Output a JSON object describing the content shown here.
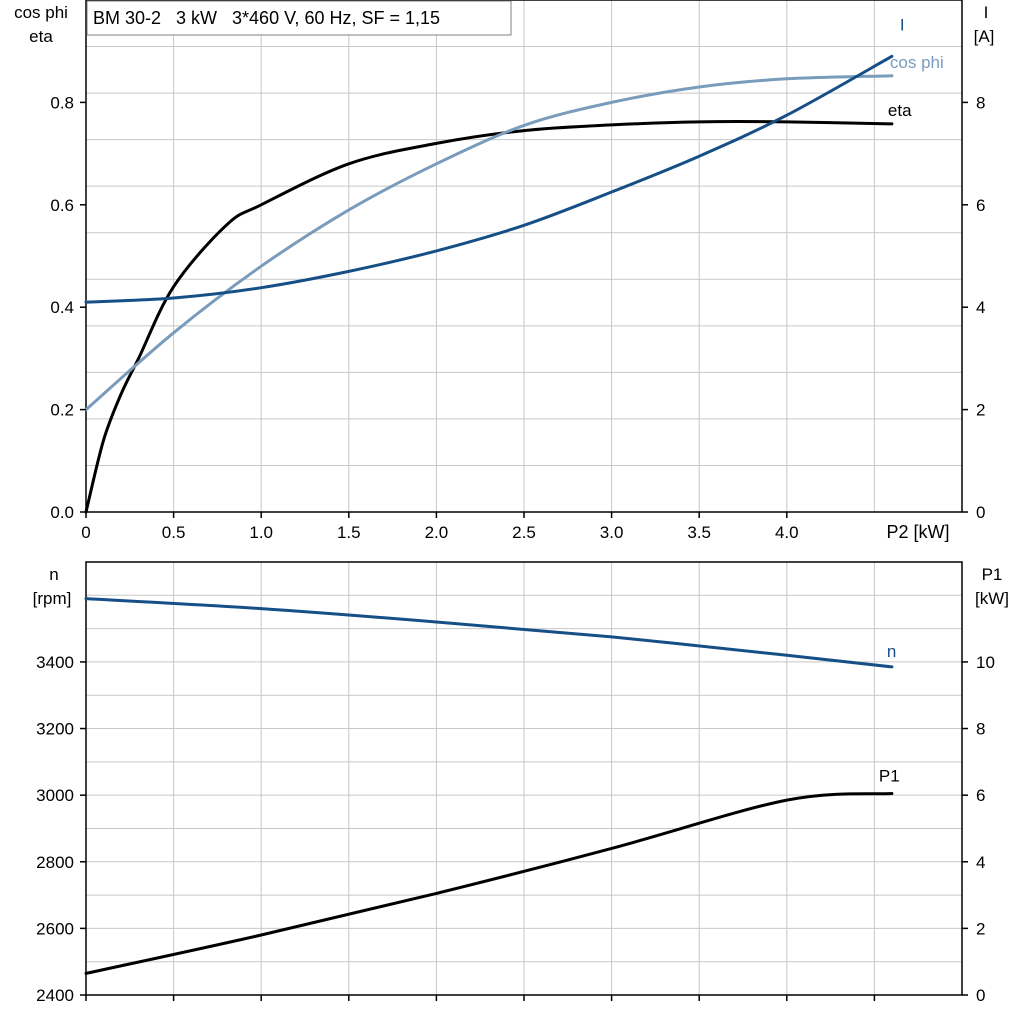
{
  "chart_data": [
    {
      "type": "line",
      "title": "BM 30-2   3 kW   3*460 V, 60 Hz, SF = 1,15",
      "xlabel": "P2 [kW]",
      "xlim": [
        0,
        5
      ],
      "xticks": [
        "0",
        "0.5",
        "1.0",
        "1.5",
        "2.0",
        "2.5",
        "3.0",
        "3.5",
        "4.0"
      ],
      "ylabel_left": [
        "cos phi",
        "eta"
      ],
      "ylim_left": [
        0,
        1.0
      ],
      "yticks_left": [
        "0.0",
        "0.2",
        "0.4",
        "0.6",
        "0.8"
      ],
      "ylabel_right": [
        "I",
        "[A]"
      ],
      "ylim_right": [
        0,
        10
      ],
      "yticks_right": [
        "0",
        "2",
        "4",
        "6",
        "8"
      ],
      "grid": true,
      "series": [
        {
          "name": "eta",
          "axis": "left",
          "color": "#000000",
          "x": [
            0,
            0.1,
            0.2,
            0.3,
            0.5,
            0.8,
            1.0,
            1.5,
            2.0,
            2.5,
            3.0,
            3.5,
            4.0,
            4.6
          ],
          "y": [
            0,
            0.14,
            0.23,
            0.3,
            0.44,
            0.56,
            0.6,
            0.68,
            0.72,
            0.745,
            0.756,
            0.762,
            0.762,
            0.758
          ]
        },
        {
          "name": "cos phi",
          "axis": "left",
          "color": "#7a9cbc",
          "x": [
            0,
            0.5,
            1.0,
            1.5,
            2.0,
            2.5,
            3.0,
            3.5,
            4.0,
            4.6
          ],
          "y": [
            0.2,
            0.35,
            0.48,
            0.59,
            0.68,
            0.755,
            0.8,
            0.83,
            0.846,
            0.852
          ]
        },
        {
          "name": "I",
          "axis": "right",
          "color": "#164f86",
          "x": [
            0,
            0.5,
            1.0,
            1.5,
            2.0,
            2.5,
            3.0,
            3.5,
            4.0,
            4.6
          ],
          "y": [
            4.1,
            4.18,
            4.38,
            4.7,
            5.1,
            5.6,
            6.25,
            6.95,
            7.75,
            8.9
          ]
        }
      ]
    },
    {
      "type": "line",
      "xlim": [
        0,
        5
      ],
      "ylabel_left": [
        "n",
        "[rpm]"
      ],
      "ylim_left": [
        2400,
        3700
      ],
      "yticks_left": [
        "2400",
        "2600",
        "2800",
        "3000",
        "3200",
        "3400"
      ],
      "ylabel_right": [
        "P1",
        "[kW]"
      ],
      "ylim_right": [
        0,
        13
      ],
      "yticks_right": [
        "0",
        "2",
        "4",
        "6",
        "8",
        "10"
      ],
      "grid": true,
      "series": [
        {
          "name": "n",
          "axis": "left",
          "color": "#164f86",
          "x": [
            0,
            1.0,
            2.0,
            3.0,
            4.0,
            4.6
          ],
          "y": [
            3590,
            3560,
            3520,
            3475,
            3420,
            3385
          ]
        },
        {
          "name": "P1",
          "axis": "right",
          "color": "#000000",
          "x": [
            0,
            1.0,
            2.0,
            3.0,
            4.0,
            4.6
          ],
          "y": [
            0.65,
            1.8,
            3.05,
            4.4,
            5.85,
            6.05
          ]
        }
      ]
    }
  ]
}
